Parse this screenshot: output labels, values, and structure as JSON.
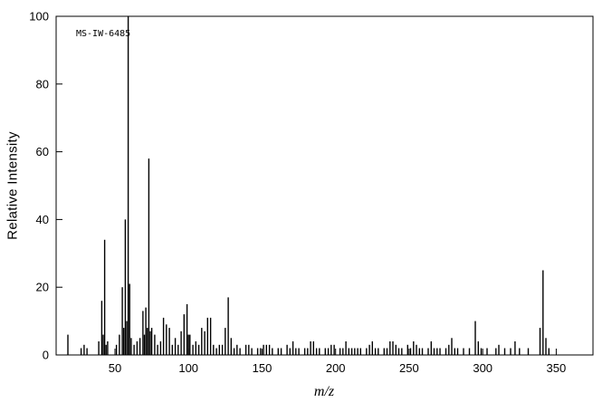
{
  "chart_data": {
    "type": "bar",
    "variant": "mass-spectrum-stick",
    "title": "",
    "annotation": "MS-IW-6485",
    "xlabel": "m/z",
    "ylabel": "Relative Intensity",
    "xlim": [
      10,
      375
    ],
    "ylim": [
      0,
      100
    ],
    "x_ticks": [
      50,
      100,
      150,
      200,
      250,
      300,
      350
    ],
    "y_ticks": [
      0,
      20,
      40,
      60,
      80,
      100
    ],
    "grid": false,
    "legend": false,
    "line_color": "#000000",
    "background_color": "#ffffff",
    "peaks": [
      [
        18,
        6
      ],
      [
        27,
        2
      ],
      [
        29,
        3
      ],
      [
        31,
        2
      ],
      [
        39,
        4
      ],
      [
        41,
        16
      ],
      [
        42,
        6
      ],
      [
        43,
        34
      ],
      [
        44,
        3
      ],
      [
        45,
        4
      ],
      [
        51,
        3
      ],
      [
        53,
        6
      ],
      [
        55,
        20
      ],
      [
        56,
        8
      ],
      [
        57,
        40
      ],
      [
        58,
        10
      ],
      [
        59,
        100
      ],
      [
        60,
        21
      ],
      [
        61,
        5
      ],
      [
        63,
        3
      ],
      [
        65,
        4
      ],
      [
        67,
        5
      ],
      [
        69,
        13
      ],
      [
        70,
        6
      ],
      [
        71,
        14
      ],
      [
        72,
        8
      ],
      [
        73,
        58
      ],
      [
        74,
        7
      ],
      [
        75,
        8
      ],
      [
        77,
        6
      ],
      [
        79,
        3
      ],
      [
        81,
        4
      ],
      [
        83,
        11
      ],
      [
        85,
        9
      ],
      [
        87,
        8
      ],
      [
        89,
        3
      ],
      [
        91,
        5
      ],
      [
        93,
        3
      ],
      [
        95,
        7
      ],
      [
        97,
        12
      ],
      [
        99,
        15
      ],
      [
        100,
        6
      ],
      [
        101,
        6
      ],
      [
        103,
        3
      ],
      [
        105,
        4
      ],
      [
        107,
        3
      ],
      [
        109,
        8
      ],
      [
        111,
        7
      ],
      [
        113,
        11
      ],
      [
        115,
        11
      ],
      [
        117,
        3
      ],
      [
        119,
        2
      ],
      [
        121,
        3
      ],
      [
        123,
        3
      ],
      [
        125,
        8
      ],
      [
        127,
        17
      ],
      [
        129,
        5
      ],
      [
        131,
        2
      ],
      [
        133,
        3
      ],
      [
        135,
        2
      ],
      [
        139,
        3
      ],
      [
        141,
        3
      ],
      [
        143,
        2
      ],
      [
        147,
        2
      ],
      [
        149,
        2
      ],
      [
        151,
        3
      ],
      [
        153,
        3
      ],
      [
        155,
        3
      ],
      [
        157,
        2
      ],
      [
        161,
        2
      ],
      [
        163,
        2
      ],
      [
        167,
        3
      ],
      [
        169,
        2
      ],
      [
        171,
        4
      ],
      [
        173,
        2
      ],
      [
        175,
        2
      ],
      [
        179,
        2
      ],
      [
        181,
        2
      ],
      [
        183,
        4
      ],
      [
        185,
        4
      ],
      [
        187,
        2
      ],
      [
        189,
        2
      ],
      [
        193,
        2
      ],
      [
        195,
        2
      ],
      [
        197,
        3
      ],
      [
        199,
        3
      ],
      [
        203,
        2
      ],
      [
        205,
        2
      ],
      [
        207,
        4
      ],
      [
        209,
        2
      ],
      [
        211,
        2
      ],
      [
        213,
        2
      ],
      [
        215,
        2
      ],
      [
        217,
        2
      ],
      [
        221,
        2
      ],
      [
        223,
        3
      ],
      [
        225,
        4
      ],
      [
        227,
        2
      ],
      [
        229,
        2
      ],
      [
        233,
        2
      ],
      [
        235,
        2
      ],
      [
        237,
        4
      ],
      [
        239,
        4
      ],
      [
        241,
        3
      ],
      [
        243,
        2
      ],
      [
        245,
        2
      ],
      [
        249,
        3
      ],
      [
        251,
        2
      ],
      [
        253,
        4
      ],
      [
        255,
        3
      ],
      [
        257,
        2
      ],
      [
        259,
        2
      ],
      [
        263,
        2
      ],
      [
        265,
        4
      ],
      [
        267,
        2
      ],
      [
        269,
        2
      ],
      [
        271,
        2
      ],
      [
        275,
        2
      ],
      [
        277,
        3
      ],
      [
        279,
        5
      ],
      [
        281,
        2
      ],
      [
        283,
        2
      ],
      [
        287,
        2
      ],
      [
        291,
        2
      ],
      [
        295,
        10
      ],
      [
        297,
        4
      ],
      [
        299,
        2
      ],
      [
        303,
        2
      ],
      [
        309,
        2
      ],
      [
        311,
        3
      ],
      [
        315,
        2
      ],
      [
        319,
        2
      ],
      [
        322,
        4
      ],
      [
        325,
        2
      ],
      [
        331,
        2
      ],
      [
        339,
        8
      ],
      [
        341,
        25
      ],
      [
        343,
        5
      ],
      [
        345,
        2
      ]
    ]
  }
}
